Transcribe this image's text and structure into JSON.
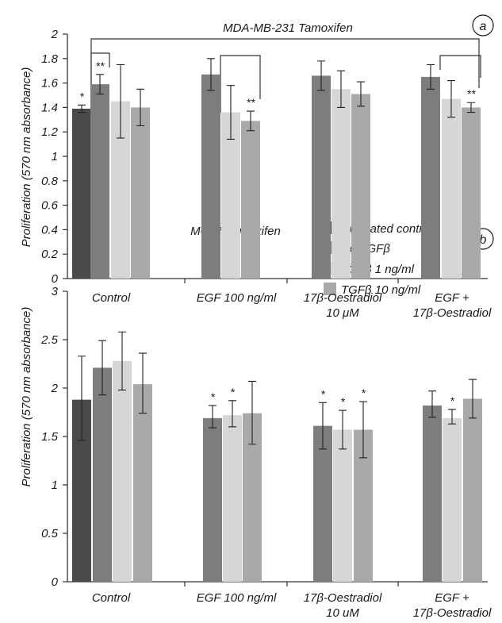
{
  "legend": [
    {
      "name": "Untreated control",
      "color": "#4a4a4c"
    },
    {
      "name": "No TGFβ",
      "color": "#7d7d80"
    },
    {
      "name": "TGFβ 1 ng/ml",
      "color": "#d6d6d8"
    },
    {
      "name": "TGFβ 10 ng/ml",
      "color": "#a9a9ac"
    }
  ],
  "chart_data": [
    {
      "type": "bar",
      "panel": "a",
      "title": "MDA-MB-231 Tamoxifen",
      "ylabel": "Proliferation (570 nm absorbance)",
      "xlabel": "",
      "ylim": [
        0,
        2
      ],
      "yticks": [
        "0",
        "0.2",
        "0.4",
        "0.6",
        "0.8",
        "1",
        "1.2",
        "1.4",
        "1.6",
        "1.8",
        "2"
      ],
      "categories": [
        [
          "Control"
        ],
        [
          "EGF 100 ng/ml"
        ],
        [
          "17β-Oestradiol",
          "10 μM"
        ],
        [
          "EGF +",
          "17β-Oestradiol"
        ]
      ],
      "series": [
        {
          "name": "Untreated control",
          "values": [
            1.39,
            null,
            null,
            null
          ],
          "err_low": [
            0.03,
            null,
            null,
            null
          ],
          "err_high": [
            0.03,
            null,
            null,
            null
          ],
          "stars": [
            "*",
            "",
            "",
            ""
          ]
        },
        {
          "name": "No TGFβ",
          "values": [
            1.59,
            1.67,
            1.66,
            1.65
          ],
          "err_low": [
            0.08,
            0.13,
            0.12,
            0.1
          ],
          "err_high": [
            0.08,
            0.13,
            0.12,
            0.1
          ],
          "stars": [
            "**",
            "",
            "",
            ""
          ]
        },
        {
          "name": "TGFβ 1 ng/ml",
          "values": [
            1.45,
            1.36,
            1.55,
            1.47
          ],
          "err_low": [
            0.3,
            0.22,
            0.15,
            0.15
          ],
          "err_high": [
            0.3,
            0.22,
            0.15,
            0.15
          ],
          "stars": [
            "",
            "",
            "",
            ""
          ]
        },
        {
          "name": "TGFβ 10 ng/ml",
          "values": [
            1.4,
            1.29,
            1.51,
            1.4
          ],
          "err_low": [
            0.15,
            0.08,
            0.1,
            0.04
          ],
          "err_high": [
            0.15,
            0.08,
            0.1,
            0.04
          ],
          "stars": [
            "",
            "**",
            "",
            "**"
          ]
        }
      ]
    },
    {
      "type": "bar",
      "panel": "b",
      "title": "MCF7 Tamoxifen",
      "ylabel": "Proliferation (570 nm absorbance)",
      "xlabel": "",
      "ylim": [
        0,
        3
      ],
      "yticks": [
        "0",
        "0.5",
        "1",
        "1.5",
        "2",
        "2.5",
        "3"
      ],
      "categories": [
        [
          "Control"
        ],
        [
          "EGF 100 ng/ml"
        ],
        [
          "17β-Oestradiol",
          "10 uM"
        ],
        [
          "EGF +",
          "17β-Oestradiol"
        ]
      ],
      "series": [
        {
          "name": "Untreated control",
          "values": [
            1.88,
            null,
            null,
            null
          ],
          "err_low": [
            0.42,
            null,
            null,
            null
          ],
          "err_high": [
            0.45,
            null,
            null,
            null
          ],
          "stars": [
            "",
            "",
            "",
            ""
          ]
        },
        {
          "name": "No TGFβ",
          "values": [
            2.21,
            1.69,
            1.61,
            1.82
          ],
          "err_low": [
            0.28,
            0.1,
            0.24,
            0.12
          ],
          "err_high": [
            0.28,
            0.13,
            0.24,
            0.15
          ],
          "stars": [
            "",
            "*",
            "*",
            ""
          ]
        },
        {
          "name": "TGFβ 1 ng/ml",
          "values": [
            2.28,
            1.72,
            1.57,
            1.69
          ],
          "err_low": [
            0.3,
            0.12,
            0.2,
            0.06
          ],
          "err_high": [
            0.3,
            0.15,
            0.2,
            0.09
          ],
          "stars": [
            "",
            "*",
            "*",
            "*"
          ]
        },
        {
          "name": "TGFβ 10 ng/ml",
          "values": [
            2.04,
            1.74,
            1.57,
            1.89
          ],
          "err_low": [
            0.3,
            0.32,
            0.29,
            0.2
          ],
          "err_high": [
            0.32,
            0.33,
            0.29,
            0.2
          ],
          "stars": [
            "",
            "",
            "*",
            ""
          ]
        }
      ]
    }
  ]
}
